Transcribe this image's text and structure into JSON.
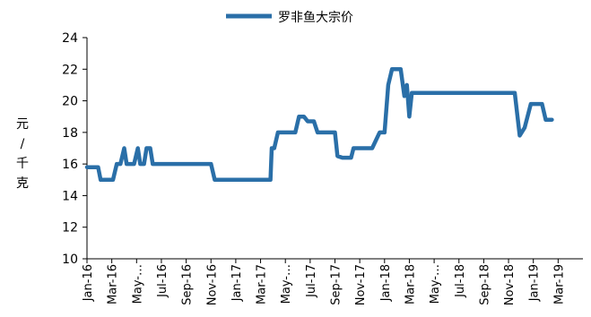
{
  "chart_data": {
    "type": "line",
    "title": "",
    "ylabel": "元/千克",
    "xlabel": "",
    "ylim": [
      10,
      24
    ],
    "yticks": [
      10,
      12,
      14,
      16,
      18,
      20,
      22,
      24
    ],
    "legend_position": "top-center",
    "grid": false,
    "series": [
      {
        "name": "罗非鱼大宗价",
        "color": "#2a6fa8"
      }
    ],
    "x_tick_labels": [
      "Jan-16",
      "Mar-16",
      "May-…",
      "Jul-16",
      "Sep-16",
      "Nov-16",
      "Jan-17",
      "Mar-17",
      "May-…",
      "Jul-17",
      "Sep-17",
      "Nov-17",
      "Jan-18",
      "Mar-18",
      "May-…",
      "Jul-18",
      "Sep-18",
      "Nov-18",
      "Jan-19",
      "Mar-19"
    ],
    "x_range_months": [
      0,
      40
    ],
    "points": [
      [
        0,
        15.8
      ],
      [
        0.9,
        15.8
      ],
      [
        1.1,
        15
      ],
      [
        2.1,
        15
      ],
      [
        2.4,
        16
      ],
      [
        2.7,
        16
      ],
      [
        3.0,
        17
      ],
      [
        3.2,
        16
      ],
      [
        3.8,
        16
      ],
      [
        4.1,
        17
      ],
      [
        4.3,
        16
      ],
      [
        4.6,
        16
      ],
      [
        4.8,
        17
      ],
      [
        5.1,
        17
      ],
      [
        5.3,
        16
      ],
      [
        10.0,
        16
      ],
      [
        10.3,
        15
      ],
      [
        14.4,
        15
      ],
      [
        14.8,
        15
      ],
      [
        14.9,
        17
      ],
      [
        15.1,
        17
      ],
      [
        15.4,
        18
      ],
      [
        16.8,
        18
      ],
      [
        17.1,
        19
      ],
      [
        17.5,
        19
      ],
      [
        17.8,
        18.7
      ],
      [
        18.3,
        18.7
      ],
      [
        18.6,
        18
      ],
      [
        20.0,
        18
      ],
      [
        20.2,
        16.5
      ],
      [
        20.6,
        16.4
      ],
      [
        21.3,
        16.4
      ],
      [
        21.5,
        17
      ],
      [
        23.0,
        17
      ],
      [
        23.6,
        18
      ],
      [
        24.0,
        18
      ],
      [
        24.3,
        21
      ],
      [
        24.6,
        22
      ],
      [
        25.3,
        22
      ],
      [
        25.6,
        20.3
      ],
      [
        25.8,
        21
      ],
      [
        26.0,
        19
      ],
      [
        26.2,
        20.5
      ],
      [
        34.5,
        20.5
      ],
      [
        34.9,
        17.8
      ],
      [
        35.3,
        18.3
      ],
      [
        35.8,
        19.8
      ],
      [
        36.7,
        19.8
      ],
      [
        37.0,
        18.8
      ],
      [
        37.5,
        18.8
      ]
    ]
  }
}
